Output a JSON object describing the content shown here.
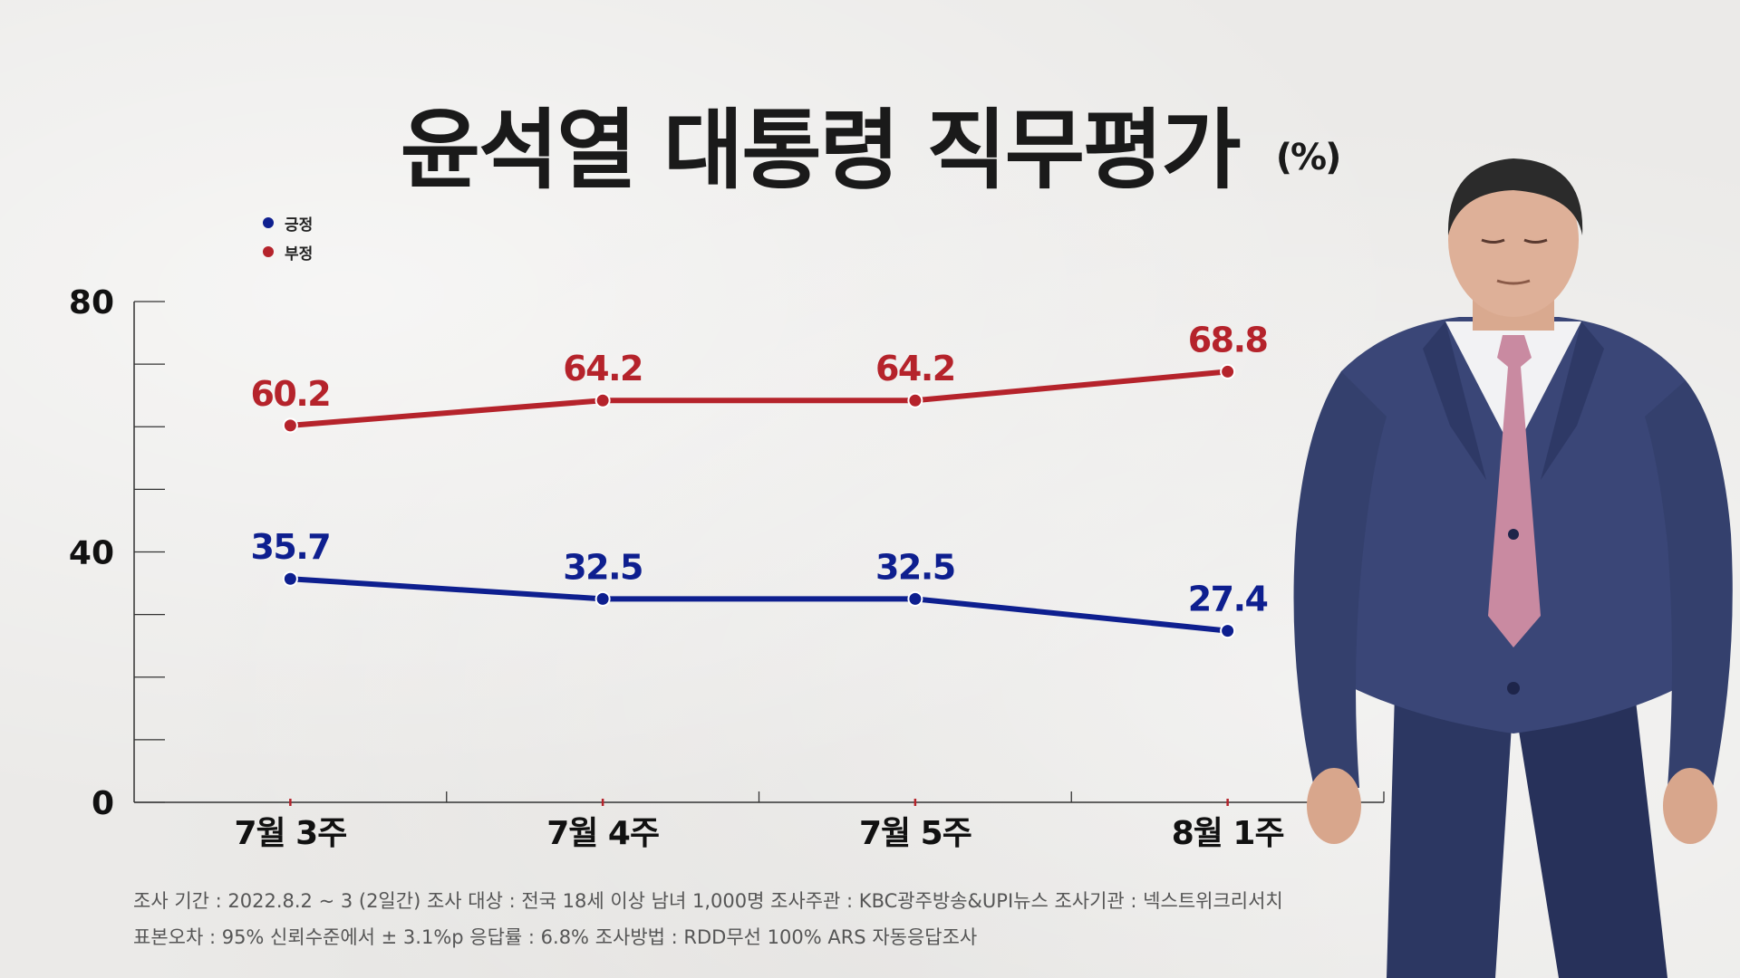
{
  "title": "윤석열 대통령 직무평가",
  "unit": "(%)",
  "colors": {
    "positive": "#0e1f8f",
    "negative": "#b5232b",
    "axis": "#333333",
    "title": "#1a1a1a"
  },
  "legend": [
    {
      "label": "긍정",
      "color": "#0e1f8f"
    },
    {
      "label": "부정",
      "color": "#b5232b"
    }
  ],
  "chart_data": {
    "type": "line",
    "categories": [
      "7월 3주",
      "7월 4주",
      "7월 5주",
      "8월 1주"
    ],
    "series": [
      {
        "name": "긍정",
        "color": "#0e1f8f",
        "values": [
          35.7,
          32.5,
          32.5,
          27.4
        ],
        "labels": [
          "35.7",
          "32.5",
          "32.5",
          "27.4"
        ]
      },
      {
        "name": "부정",
        "color": "#b5232b",
        "values": [
          60.2,
          64.2,
          64.2,
          68.8
        ],
        "labels": [
          "60.2",
          "64.2",
          "64.2",
          "68.8"
        ]
      }
    ],
    "yticks": [
      "0",
      "40",
      "80"
    ],
    "ylim": [
      0,
      80
    ],
    "minor_tick_step": 10,
    "grid": false,
    "legend_position": "top-left"
  },
  "footnote": {
    "line1": "조사 기간 : 2022.8.2 ~ 3 (2일간)   조사 대상 : 전국 18세 이상 남녀 1,000명   조사주관 : KBC광주방송&UPI뉴스   조사기관 : 넥스트위크리서치",
    "line2": "표본오차 : 95% 신뢰수준에서 ± 3.1%p   응답률 : 6.8%   조사방법 : RDD무선 100% ARS 자동응답조사"
  },
  "photo": {
    "icon": "person-photo"
  }
}
